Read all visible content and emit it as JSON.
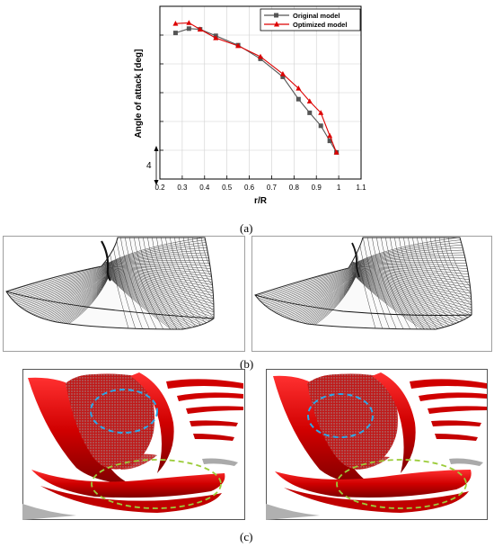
{
  "figure": {
    "panels": [
      {
        "label": "(a)"
      },
      {
        "label": "(b)"
      },
      {
        "label": "(c)"
      }
    ]
  },
  "chart_data": {
    "type": "line",
    "title": "",
    "xlabel": "r/R",
    "ylabel": "Angle of attack [deg]",
    "xlim": [
      0.2,
      1.1
    ],
    "xticks": [
      "0.2",
      "0.3",
      "0.4",
      "0.5",
      "0.6",
      "0.7",
      "0.8",
      "0.9",
      "1",
      "1.1"
    ],
    "y_scale_bar_label": "4",
    "grid": true,
    "legend_position": "top-right",
    "series": [
      {
        "name": "Original model",
        "color": "#555555",
        "marker": "square",
        "x": [
          0.27,
          0.33,
          0.38,
          0.45,
          0.55,
          0.65,
          0.75,
          0.82,
          0.87,
          0.92,
          0.96,
          0.99
        ],
        "y": [
          20.3,
          20.9,
          20.8,
          19.9,
          18.6,
          16.7,
          14.2,
          11.1,
          9.2,
          7.4,
          5.3,
          3.7
        ]
      },
      {
        "name": "Optimized model",
        "color": "#dd0000",
        "marker": "triangle",
        "x": [
          0.27,
          0.33,
          0.38,
          0.45,
          0.55,
          0.65,
          0.75,
          0.82,
          0.87,
          0.92,
          0.96,
          0.99
        ],
        "y": [
          21.6,
          21.7,
          20.8,
          19.6,
          18.5,
          17.0,
          14.6,
          12.6,
          10.8,
          9.2,
          6.0,
          3.7
        ]
      }
    ]
  }
}
